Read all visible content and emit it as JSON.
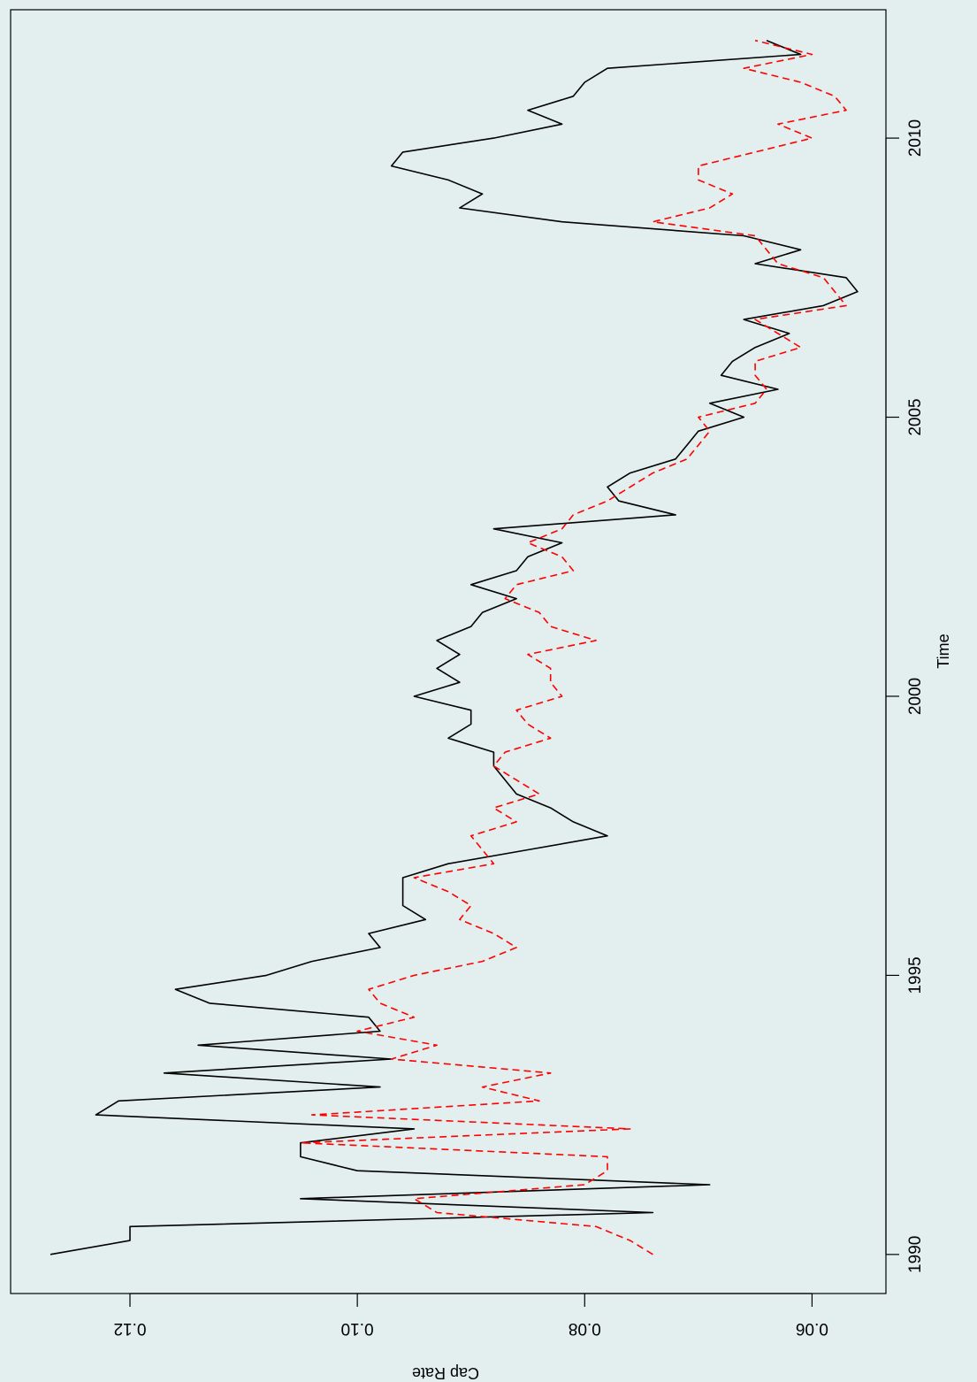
{
  "chart_data": {
    "type": "line",
    "xlabel": "Time",
    "ylabel": "Cap Rate",
    "xlim": [
      1989.3,
      2012.3
    ],
    "ylim": [
      0.0535,
      0.1305
    ],
    "x_ticks": [
      1990,
      1995,
      2000,
      2005,
      2010
    ],
    "x_tick_labels": [
      "1990",
      "1995",
      "2000",
      "2005",
      "2010"
    ],
    "y_ticks": [
      0.06,
      0.08,
      0.1,
      0.12
    ],
    "y_tick_labels": [
      "0.06",
      "0.08",
      "0.10",
      "0.12"
    ],
    "grid": false,
    "orientation": "rotated-90-clockwise",
    "series": [
      {
        "style": "solid",
        "color": "#000000",
        "x": [
          1990.0,
          1990.25,
          1990.5,
          1990.75,
          1991.0,
          1991.25,
          1991.5,
          1991.75,
          1992.0,
          1992.25,
          1992.5,
          1992.75,
          1993.0,
          1993.25,
          1993.5,
          1993.75,
          1994.0,
          1994.25,
          1994.5,
          1994.75,
          1995.0,
          1995.25,
          1995.5,
          1995.75,
          1996.0,
          1996.25,
          1996.5,
          1996.75,
          1997.0,
          1997.25,
          1997.5,
          1997.75,
          1998.0,
          1998.25,
          1998.5,
          1998.75,
          1999.0,
          1999.25,
          1999.5,
          1999.75,
          2000.0,
          2000.25,
          2000.5,
          2000.75,
          2001.0,
          2001.25,
          2001.5,
          2001.75,
          2002.0,
          2002.25,
          2002.5,
          2002.75,
          2003.0,
          2003.25,
          2003.5,
          2003.75,
          2004.0,
          2004.25,
          2004.5,
          2004.75,
          2005.0,
          2005.25,
          2005.5,
          2005.75,
          2006.0,
          2006.25,
          2006.5,
          2006.75,
          2007.0,
          2007.25,
          2007.5,
          2007.75,
          2008.0,
          2008.25,
          2008.5,
          2008.75,
          2009.0,
          2009.25,
          2009.5,
          2009.75,
          2010.0,
          2010.25,
          2010.5,
          2010.75,
          2011.0,
          2011.25,
          2011.5,
          2011.75
        ],
        "y": [
          0.127,
          0.12,
          0.12,
          0.074,
          0.105,
          0.069,
          0.1,
          0.105,
          0.105,
          0.095,
          0.123,
          0.121,
          0.098,
          0.117,
          0.097,
          0.114,
          0.098,
          0.099,
          0.113,
          0.116,
          0.108,
          0.104,
          0.098,
          0.099,
          0.094,
          0.096,
          0.096,
          0.096,
          0.092,
          0.085,
          0.078,
          0.081,
          0.083,
          0.086,
          0.087,
          0.088,
          0.088,
          0.092,
          0.09,
          0.09,
          0.095,
          0.091,
          0.093,
          0.091,
          0.093,
          0.09,
          0.089,
          0.086,
          0.09,
          0.086,
          0.085,
          0.082,
          0.088,
          0.072,
          0.077,
          0.078,
          0.076,
          0.072,
          0.071,
          0.07,
          0.066,
          0.069,
          0.063,
          0.068,
          0.067,
          0.065,
          0.062,
          0.066,
          0.059,
          0.056,
          0.057,
          0.065,
          0.061,
          0.066,
          0.082,
          0.091,
          0.089,
          0.092,
          0.097,
          0.096,
          0.088,
          0.082,
          0.085,
          0.081,
          0.08,
          0.078,
          0.061,
          0.064
        ]
      },
      {
        "style": "dashed",
        "color": "#ff0000",
        "x": [
          1990.0,
          1990.25,
          1990.5,
          1990.75,
          1991.0,
          1991.25,
          1991.5,
          1991.75,
          1992.0,
          1992.25,
          1992.5,
          1992.75,
          1993.0,
          1993.25,
          1993.5,
          1993.75,
          1994.0,
          1994.25,
          1994.5,
          1994.75,
          1995.0,
          1995.25,
          1995.5,
          1995.75,
          1996.0,
          1996.25,
          1996.5,
          1996.75,
          1997.0,
          1997.25,
          1997.5,
          1997.75,
          1998.0,
          1998.25,
          1998.5,
          1998.75,
          1999.0,
          1999.25,
          1999.5,
          1999.75,
          2000.0,
          2000.25,
          2000.5,
          2000.75,
          2001.0,
          2001.25,
          2001.5,
          2001.75,
          2002.0,
          2002.25,
          2002.5,
          2002.75,
          2003.0,
          2003.25,
          2003.5,
          2003.75,
          2004.0,
          2004.25,
          2004.5,
          2004.75,
          2005.0,
          2005.25,
          2005.5,
          2005.75,
          2006.0,
          2006.25,
          2006.5,
          2006.75,
          2007.0,
          2007.25,
          2007.5,
          2007.75,
          2008.0,
          2008.25,
          2008.5,
          2008.75,
          2009.0,
          2009.25,
          2009.5,
          2009.75,
          2010.0,
          2010.25,
          2010.5,
          2010.75,
          2011.0,
          2011.25,
          2011.5,
          2011.75
        ],
        "y": [
          0.074,
          0.076,
          0.079,
          0.093,
          0.095,
          0.08,
          0.078,
          0.078,
          0.105,
          0.076,
          0.104,
          0.084,
          0.089,
          0.083,
          0.097,
          0.093,
          0.1,
          0.095,
          0.098,
          0.099,
          0.095,
          0.089,
          0.086,
          0.088,
          0.091,
          0.09,
          0.092,
          0.095,
          0.088,
          0.089,
          0.09,
          0.086,
          0.088,
          0.084,
          0.086,
          0.088,
          0.087,
          0.083,
          0.085,
          0.086,
          0.082,
          0.083,
          0.083,
          0.085,
          0.079,
          0.083,
          0.084,
          0.087,
          0.086,
          0.081,
          0.082,
          0.085,
          0.082,
          0.081,
          0.078,
          0.076,
          0.074,
          0.071,
          0.07,
          0.069,
          0.07,
          0.065,
          0.064,
          0.065,
          0.065,
          0.061,
          0.063,
          0.065,
          0.057,
          0.058,
          0.059,
          0.063,
          0.064,
          0.065,
          0.074,
          0.069,
          0.067,
          0.07,
          0.07,
          0.065,
          0.06,
          0.063,
          0.057,
          0.058,
          0.061,
          0.066,
          0.06,
          0.065
        ]
      }
    ]
  }
}
